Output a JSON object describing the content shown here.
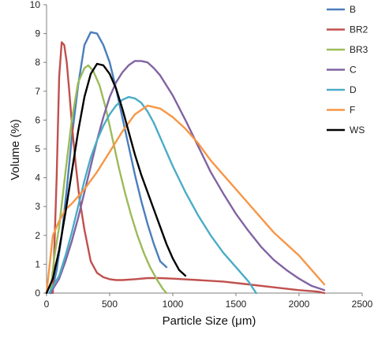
{
  "chart_data": {
    "type": "line",
    "xlabel": "Particle Size (μm)",
    "ylabel": "Volume (%)",
    "xlim": [
      0,
      2500
    ],
    "ylim": [
      0,
      10
    ],
    "x_ticks": [
      0,
      500,
      1000,
      1500,
      2000,
      2500
    ],
    "y_ticks": [
      0,
      1,
      2,
      3,
      4,
      5,
      6,
      7,
      8,
      9,
      10
    ],
    "grid": false,
    "legend_position": "right",
    "series": [
      {
        "name": "B",
        "color": "#4a7ebb",
        "x": [
          40,
          80,
          120,
          160,
          200,
          250,
          300,
          350,
          400,
          450,
          500,
          550,
          600,
          650,
          700,
          750,
          800,
          850,
          900,
          950
        ],
        "y": [
          0.0,
          0.8,
          2.0,
          3.6,
          5.4,
          7.2,
          8.6,
          9.05,
          9.0,
          8.6,
          8.0,
          7.1,
          6.1,
          5.1,
          4.1,
          3.2,
          2.4,
          1.7,
          1.1,
          0.9
        ]
      },
      {
        "name": "BR2",
        "color": "#c0504d",
        "x": [
          50,
          80,
          100,
          120,
          140,
          160,
          180,
          200,
          230,
          260,
          300,
          350,
          400,
          450,
          500,
          550,
          600,
          700,
          800,
          900,
          1000,
          1200,
          1400,
          1600,
          1800,
          2000,
          2150,
          2200
        ],
        "y": [
          0.0,
          4.0,
          7.5,
          8.7,
          8.6,
          8.0,
          7.0,
          5.9,
          4.5,
          3.3,
          2.2,
          1.1,
          0.7,
          0.55,
          0.48,
          0.45,
          0.45,
          0.48,
          0.52,
          0.52,
          0.5,
          0.45,
          0.4,
          0.3,
          0.2,
          0.1,
          0.05,
          0.0
        ]
      },
      {
        "name": "BR3",
        "color": "#9bbb59",
        "x": [
          30,
          60,
          100,
          150,
          200,
          250,
          300,
          330,
          370,
          420,
          470,
          520,
          570,
          620,
          670,
          720,
          770,
          820,
          870,
          920,
          950
        ],
        "y": [
          0.0,
          1.2,
          2.3,
          4.2,
          6.0,
          7.3,
          7.8,
          7.9,
          7.7,
          7.2,
          6.4,
          5.4,
          4.4,
          3.5,
          2.7,
          2.0,
          1.4,
          0.9,
          0.5,
          0.15,
          0.0
        ]
      },
      {
        "name": "C",
        "color": "#8064a2",
        "x": [
          30,
          100,
          150,
          200,
          250,
          300,
          350,
          400,
          450,
          500,
          550,
          600,
          650,
          700,
          750,
          800,
          850,
          900,
          950,
          1000,
          1100,
          1200,
          1300,
          1400,
          1500,
          1600,
          1700,
          1800,
          1900,
          2000,
          2100,
          2200
        ],
        "y": [
          0.0,
          0.5,
          1.1,
          1.8,
          2.6,
          3.5,
          4.4,
          5.3,
          6.1,
          6.8,
          7.3,
          7.65,
          7.9,
          8.05,
          8.05,
          8.0,
          7.8,
          7.55,
          7.2,
          6.85,
          6.0,
          5.1,
          4.2,
          3.45,
          2.75,
          2.15,
          1.6,
          1.15,
          0.8,
          0.5,
          0.25,
          0.1
        ]
      },
      {
        "name": "D",
        "color": "#4bacc6",
        "x": [
          20,
          100,
          150,
          200,
          250,
          300,
          350,
          400,
          450,
          500,
          550,
          600,
          650,
          700,
          750,
          800,
          850,
          900,
          1000,
          1100,
          1200,
          1300,
          1400,
          1500,
          1600,
          1660
        ],
        "y": [
          0.0,
          0.6,
          1.3,
          2.1,
          3.0,
          3.9,
          4.7,
          5.3,
          5.8,
          6.2,
          6.5,
          6.7,
          6.8,
          6.75,
          6.6,
          6.3,
          5.9,
          5.4,
          4.4,
          3.5,
          2.7,
          2.0,
          1.4,
          0.9,
          0.4,
          0.0
        ]
      },
      {
        "name": "F",
        "color": "#f79646",
        "x": [
          0,
          50,
          100,
          150,
          200,
          300,
          400,
          500,
          600,
          700,
          800,
          900,
          1000,
          1100,
          1200,
          1300,
          1400,
          1500,
          1600,
          1700,
          1800,
          1900,
          2000,
          2100,
          2200
        ],
        "y": [
          0.0,
          2.0,
          2.5,
          2.9,
          3.1,
          3.6,
          4.2,
          4.9,
          5.6,
          6.2,
          6.5,
          6.4,
          6.1,
          5.7,
          5.2,
          4.6,
          4.1,
          3.6,
          3.1,
          2.6,
          2.1,
          1.7,
          1.3,
          0.8,
          0.3
        ]
      },
      {
        "name": "WS",
        "color": "#000000",
        "x": [
          0,
          50,
          100,
          150,
          200,
          250,
          300,
          350,
          400,
          450,
          500,
          550,
          600,
          650,
          700,
          750,
          800,
          850,
          900,
          950,
          1000,
          1050,
          1100
        ],
        "y": [
          0.0,
          0.5,
          1.5,
          2.8,
          4.2,
          5.6,
          6.8,
          7.6,
          7.95,
          7.9,
          7.6,
          7.1,
          6.4,
          5.6,
          4.8,
          4.1,
          3.5,
          2.9,
          2.3,
          1.7,
          1.2,
          0.8,
          0.6
        ]
      }
    ]
  }
}
